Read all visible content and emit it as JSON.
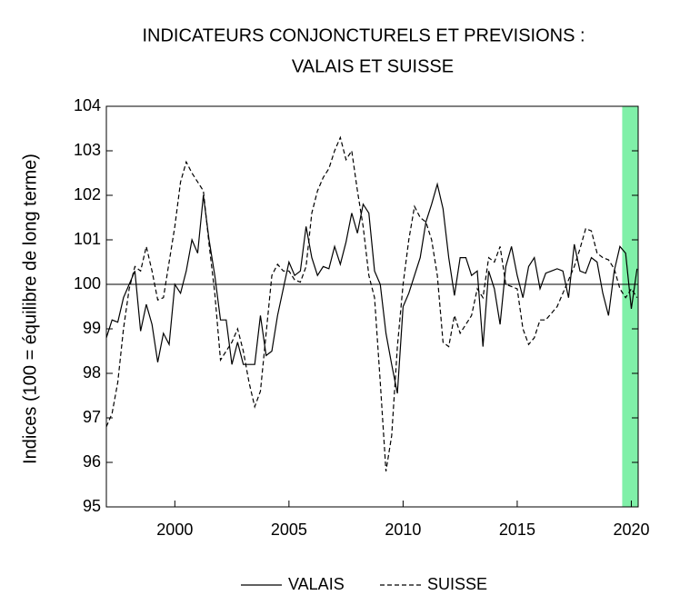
{
  "chart_data": {
    "type": "line",
    "title": [
      "INDICATEURS CONJONCTURELS ET PREVISIONS :",
      "VALAIS ET SUISSE"
    ],
    "ylabel": "Indices (100 = équilibre de long terme)",
    "x": [
      1997,
      1997.25,
      1997.5,
      1997.75,
      1998,
      1998.25,
      1998.5,
      1998.75,
      1999,
      1999.25,
      1999.5,
      1999.75,
      2000,
      2000.25,
      2000.5,
      2000.75,
      2001,
      2001.25,
      2001.5,
      2001.75,
      2002,
      2002.25,
      2002.5,
      2002.75,
      2003,
      2003.25,
      2003.5,
      2003.75,
      2004,
      2004.25,
      2004.5,
      2004.75,
      2005,
      2005.25,
      2005.5,
      2005.75,
      2006,
      2006.25,
      2006.5,
      2006.75,
      2007,
      2007.25,
      2007.5,
      2007.75,
      2008,
      2008.25,
      2008.5,
      2008.75,
      2009,
      2009.25,
      2009.5,
      2009.75,
      2010,
      2010.25,
      2010.5,
      2010.75,
      2011,
      2011.25,
      2011.5,
      2011.75,
      2012,
      2012.25,
      2012.5,
      2012.75,
      2013,
      2013.25,
      2013.5,
      2013.75,
      2014,
      2014.25,
      2014.5,
      2014.75,
      2015,
      2015.25,
      2015.5,
      2015.75,
      2016,
      2016.25,
      2016.5,
      2016.75,
      2017,
      2017.25,
      2017.5,
      2017.75,
      2018,
      2018.25,
      2018.5,
      2018.75,
      2019,
      2019.25,
      2019.5,
      2019.75,
      2020,
      2020.25
    ],
    "series": [
      {
        "name": "VALAIS",
        "color": "#000000",
        "dash": "solid",
        "values": [
          98.8,
          99.2,
          99.15,
          99.7,
          100.0,
          100.3,
          98.95,
          99.55,
          99.1,
          98.25,
          98.9,
          98.65,
          100.0,
          99.8,
          100.3,
          101.0,
          100.7,
          102.0,
          101.0,
          100.2,
          99.2,
          99.2,
          98.2,
          98.7,
          98.2,
          98.2,
          98.2,
          99.3,
          98.4,
          98.5,
          99.3,
          99.9,
          100.5,
          100.2,
          100.3,
          101.3,
          100.6,
          100.2,
          100.4,
          100.35,
          100.85,
          100.45,
          100.95,
          101.6,
          101.15,
          101.8,
          101.6,
          100.3,
          100.0,
          98.9,
          98.2,
          97.55,
          99.5,
          99.8,
          100.2,
          100.6,
          101.4,
          101.8,
          102.25,
          101.7,
          100.6,
          99.75,
          100.6,
          100.6,
          100.2,
          100.3,
          98.6,
          100.3,
          99.9,
          99.1,
          100.4,
          100.85,
          100.2,
          99.7,
          100.4,
          100.6,
          99.9,
          100.25,
          100.3,
          100.35,
          100.3,
          99.7,
          100.9,
          100.3,
          100.25,
          100.6,
          100.5,
          99.8,
          99.3,
          100.3,
          100.85,
          100.7,
          99.45,
          100.35
        ]
      },
      {
        "name": "SUISSE",
        "color": "#000000",
        "dash": "dashed",
        "values": [
          96.8,
          97.1,
          97.8,
          99.0,
          99.9,
          100.4,
          100.3,
          100.85,
          100.3,
          99.65,
          99.7,
          100.5,
          101.3,
          102.3,
          102.75,
          102.5,
          102.3,
          102.1,
          100.9,
          99.8,
          98.3,
          98.5,
          98.7,
          99.0,
          98.5,
          97.8,
          97.25,
          97.6,
          98.9,
          100.2,
          100.45,
          100.3,
          100.3,
          100.1,
          100.05,
          100.4,
          101.6,
          102.1,
          102.4,
          102.6,
          103.0,
          103.3,
          102.8,
          103.0,
          102.1,
          101.3,
          100.2,
          99.7,
          97.8,
          95.8,
          96.6,
          98.6,
          100.0,
          101.0,
          101.75,
          101.5,
          101.4,
          101.0,
          100.2,
          98.7,
          98.6,
          99.3,
          98.9,
          99.1,
          99.3,
          99.9,
          99.7,
          100.6,
          100.5,
          100.85,
          100.0,
          99.95,
          99.9,
          99.0,
          98.65,
          98.8,
          99.2,
          99.2,
          99.35,
          99.5,
          99.8,
          100.1,
          100.4,
          100.8,
          101.25,
          101.2,
          100.7,
          100.6,
          100.55,
          100.35,
          99.9,
          99.7,
          99.9,
          99.7
        ]
      }
    ],
    "xlim": [
      1997,
      2020.3
    ],
    "xticks": [
      2000,
      2005,
      2010,
      2015,
      2020
    ],
    "ylim": [
      95,
      104
    ],
    "yticks": [
      95,
      96,
      97,
      98,
      99,
      100,
      101,
      102,
      103,
      104
    ],
    "hline": 100,
    "shaded_region": [
      2019.6,
      2020.3
    ],
    "shade_color": "#80f0a8",
    "legend": "bottom"
  }
}
